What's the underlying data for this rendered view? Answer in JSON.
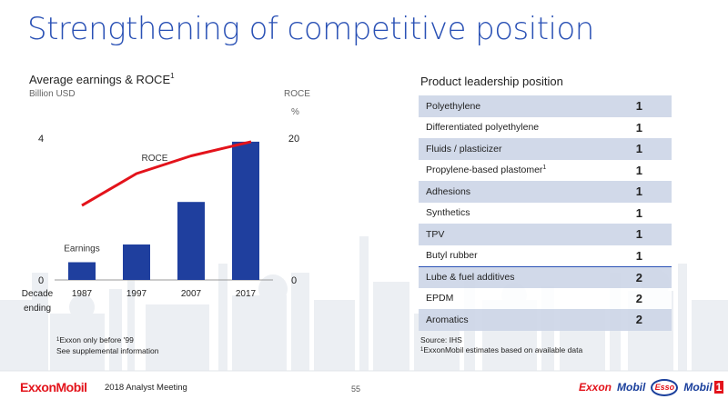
{
  "page": {
    "title": "Strengthening of competitive position",
    "footer": {
      "logo": "ExxonMobil",
      "meeting": "2018 Analyst Meeting",
      "page_number": "55",
      "brands": [
        "Exxon",
        "Mobil",
        "Esso",
        "Mobil",
        "1"
      ]
    }
  },
  "chart_header": {
    "title": "Average earnings & ROCE",
    "title_sup": "1",
    "left_unit": "Billion USD",
    "right_unit_1": "ROCE",
    "right_unit_2": "%",
    "x_axis_label": "Decade ending",
    "footnote_1_sup": "1",
    "footnote_1": "Exxon only before '99",
    "footnote_2": "See supplemental information"
  },
  "chart_data": {
    "type": "bar+line",
    "categories": [
      "1987",
      "1997",
      "2007",
      "2017"
    ],
    "series": [
      {
        "name": "Earnings",
        "type": "bar",
        "axis": "left",
        "values": [
          0.5,
          1.0,
          2.2,
          3.9
        ]
      },
      {
        "name": "ROCE",
        "type": "line",
        "axis": "right",
        "values": [
          10.5,
          15.0,
          17.5,
          19.5
        ]
      }
    ],
    "ylim_left": [
      0,
      4
    ],
    "ylim_right": [
      0,
      20
    ],
    "left_ticks": [
      "0",
      "4"
    ],
    "right_ticks": [
      "0",
      "20"
    ],
    "bar_color": "#1f3f9e",
    "line_color": "#e3131b"
  },
  "table": {
    "title": "Product leadership position",
    "rows": [
      {
        "product": "Polyethylene",
        "sup": "",
        "rank": "1"
      },
      {
        "product": "Differentiated polyethylene",
        "sup": "",
        "rank": "1"
      },
      {
        "product": "Fluids / plasticizer",
        "sup": "",
        "rank": "1"
      },
      {
        "product": "Propylene-based plastomer",
        "sup": "1",
        "rank": "1"
      },
      {
        "product": "Adhesions",
        "sup": "",
        "rank": "1"
      },
      {
        "product": "Synthetics",
        "sup": "",
        "rank": "1"
      },
      {
        "product": "TPV",
        "sup": "",
        "rank": "1"
      },
      {
        "product": "Butyl rubber",
        "sup": "",
        "rank": "1"
      },
      {
        "product": "Lube & fuel additives",
        "sup": "",
        "rank": "2"
      },
      {
        "product": "EPDM",
        "sup": "",
        "rank": "2"
      },
      {
        "product": "Aromatics",
        "sup": "",
        "rank": "2"
      }
    ],
    "source": "Source: IHS",
    "footnote_sup": "1",
    "footnote": "ExxonMobil estimates based on available data"
  }
}
